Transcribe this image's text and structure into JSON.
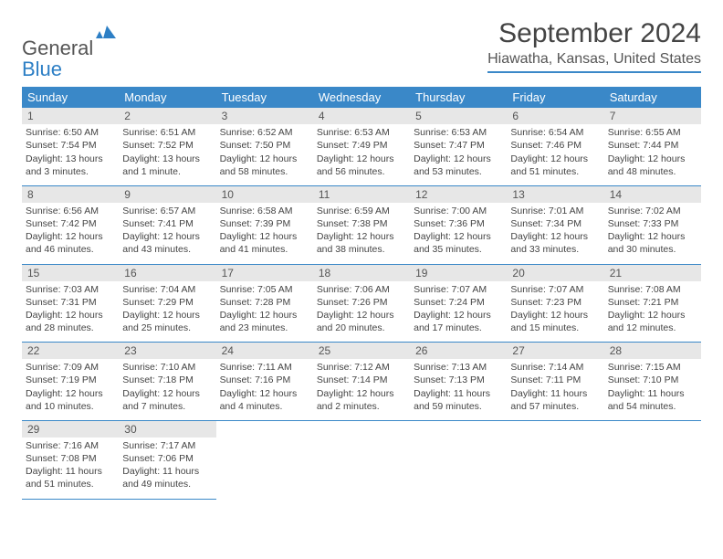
{
  "logo": {
    "word1": "General",
    "word2": "Blue"
  },
  "title": "September 2024",
  "location": "Hiawatha, Kansas, United States",
  "colors": {
    "accent": "#3a88c8",
    "daynum_bg": "#e7e7e7",
    "text": "#444444",
    "logo_gray": "#555555",
    "logo_blue": "#2d7fc5"
  },
  "weekdays": [
    "Sunday",
    "Monday",
    "Tuesday",
    "Wednesday",
    "Thursday",
    "Friday",
    "Saturday"
  ],
  "days": [
    {
      "n": "1",
      "sr": "6:50 AM",
      "ss": "7:54 PM",
      "dl": "13 hours and 3 minutes."
    },
    {
      "n": "2",
      "sr": "6:51 AM",
      "ss": "7:52 PM",
      "dl": "13 hours and 1 minute."
    },
    {
      "n": "3",
      "sr": "6:52 AM",
      "ss": "7:50 PM",
      "dl": "12 hours and 58 minutes."
    },
    {
      "n": "4",
      "sr": "6:53 AM",
      "ss": "7:49 PM",
      "dl": "12 hours and 56 minutes."
    },
    {
      "n": "5",
      "sr": "6:53 AM",
      "ss": "7:47 PM",
      "dl": "12 hours and 53 minutes."
    },
    {
      "n": "6",
      "sr": "6:54 AM",
      "ss": "7:46 PM",
      "dl": "12 hours and 51 minutes."
    },
    {
      "n": "7",
      "sr": "6:55 AM",
      "ss": "7:44 PM",
      "dl": "12 hours and 48 minutes."
    },
    {
      "n": "8",
      "sr": "6:56 AM",
      "ss": "7:42 PM",
      "dl": "12 hours and 46 minutes."
    },
    {
      "n": "9",
      "sr": "6:57 AM",
      "ss": "7:41 PM",
      "dl": "12 hours and 43 minutes."
    },
    {
      "n": "10",
      "sr": "6:58 AM",
      "ss": "7:39 PM",
      "dl": "12 hours and 41 minutes."
    },
    {
      "n": "11",
      "sr": "6:59 AM",
      "ss": "7:38 PM",
      "dl": "12 hours and 38 minutes."
    },
    {
      "n": "12",
      "sr": "7:00 AM",
      "ss": "7:36 PM",
      "dl": "12 hours and 35 minutes."
    },
    {
      "n": "13",
      "sr": "7:01 AM",
      "ss": "7:34 PM",
      "dl": "12 hours and 33 minutes."
    },
    {
      "n": "14",
      "sr": "7:02 AM",
      "ss": "7:33 PM",
      "dl": "12 hours and 30 minutes."
    },
    {
      "n": "15",
      "sr": "7:03 AM",
      "ss": "7:31 PM",
      "dl": "12 hours and 28 minutes."
    },
    {
      "n": "16",
      "sr": "7:04 AM",
      "ss": "7:29 PM",
      "dl": "12 hours and 25 minutes."
    },
    {
      "n": "17",
      "sr": "7:05 AM",
      "ss": "7:28 PM",
      "dl": "12 hours and 23 minutes."
    },
    {
      "n": "18",
      "sr": "7:06 AM",
      "ss": "7:26 PM",
      "dl": "12 hours and 20 minutes."
    },
    {
      "n": "19",
      "sr": "7:07 AM",
      "ss": "7:24 PM",
      "dl": "12 hours and 17 minutes."
    },
    {
      "n": "20",
      "sr": "7:07 AM",
      "ss": "7:23 PM",
      "dl": "12 hours and 15 minutes."
    },
    {
      "n": "21",
      "sr": "7:08 AM",
      "ss": "7:21 PM",
      "dl": "12 hours and 12 minutes."
    },
    {
      "n": "22",
      "sr": "7:09 AM",
      "ss": "7:19 PM",
      "dl": "12 hours and 10 minutes."
    },
    {
      "n": "23",
      "sr": "7:10 AM",
      "ss": "7:18 PM",
      "dl": "12 hours and 7 minutes."
    },
    {
      "n": "24",
      "sr": "7:11 AM",
      "ss": "7:16 PM",
      "dl": "12 hours and 4 minutes."
    },
    {
      "n": "25",
      "sr": "7:12 AM",
      "ss": "7:14 PM",
      "dl": "12 hours and 2 minutes."
    },
    {
      "n": "26",
      "sr": "7:13 AM",
      "ss": "7:13 PM",
      "dl": "11 hours and 59 minutes."
    },
    {
      "n": "27",
      "sr": "7:14 AM",
      "ss": "7:11 PM",
      "dl": "11 hours and 57 minutes."
    },
    {
      "n": "28",
      "sr": "7:15 AM",
      "ss": "7:10 PM",
      "dl": "11 hours and 54 minutes."
    },
    {
      "n": "29",
      "sr": "7:16 AM",
      "ss": "7:08 PM",
      "dl": "11 hours and 51 minutes."
    },
    {
      "n": "30",
      "sr": "7:17 AM",
      "ss": "7:06 PM",
      "dl": "11 hours and 49 minutes."
    }
  ],
  "labels": {
    "sunrise": "Sunrise:",
    "sunset": "Sunset:",
    "daylight": "Daylight:"
  }
}
